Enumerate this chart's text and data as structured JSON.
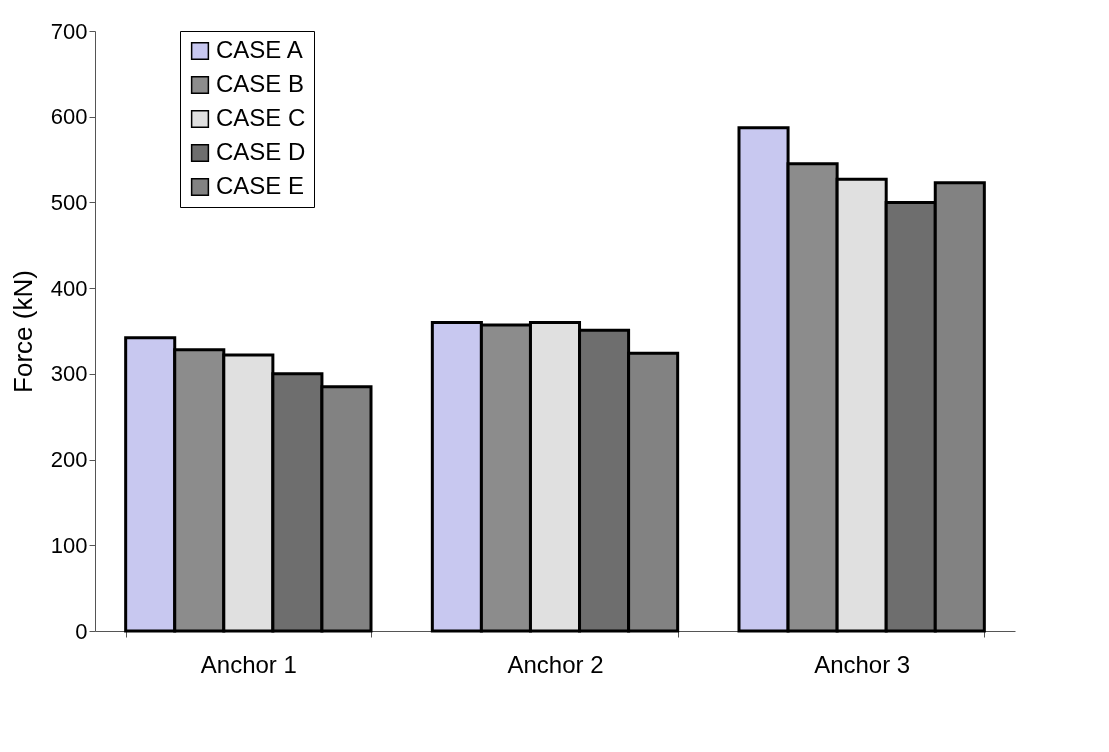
{
  "chart_data": {
    "type": "bar",
    "ylabel": "Force (kN)",
    "categories": [
      "Anchor 1",
      "Anchor 2",
      "Anchor 3"
    ],
    "series": [
      {
        "name": "CASE A",
        "color": "#c8c8f0",
        "values": [
          342,
          360,
          587
        ]
      },
      {
        "name": "CASE B",
        "color": "#8c8c8c",
        "values": [
          328,
          357,
          545
        ]
      },
      {
        "name": "CASE C",
        "color": "#e0e0e0",
        "values": [
          322,
          360,
          527
        ]
      },
      {
        "name": "CASE D",
        "color": "#6e6e6e",
        "values": [
          300,
          351,
          500
        ]
      },
      {
        "name": "CASE E",
        "color": "#828282",
        "values": [
          285,
          324,
          523
        ]
      }
    ],
    "ylim": [
      0,
      700
    ],
    "yticks": [
      0,
      100,
      200,
      300,
      400,
      500,
      600,
      700
    ],
    "grid": false,
    "legend": "top left"
  }
}
